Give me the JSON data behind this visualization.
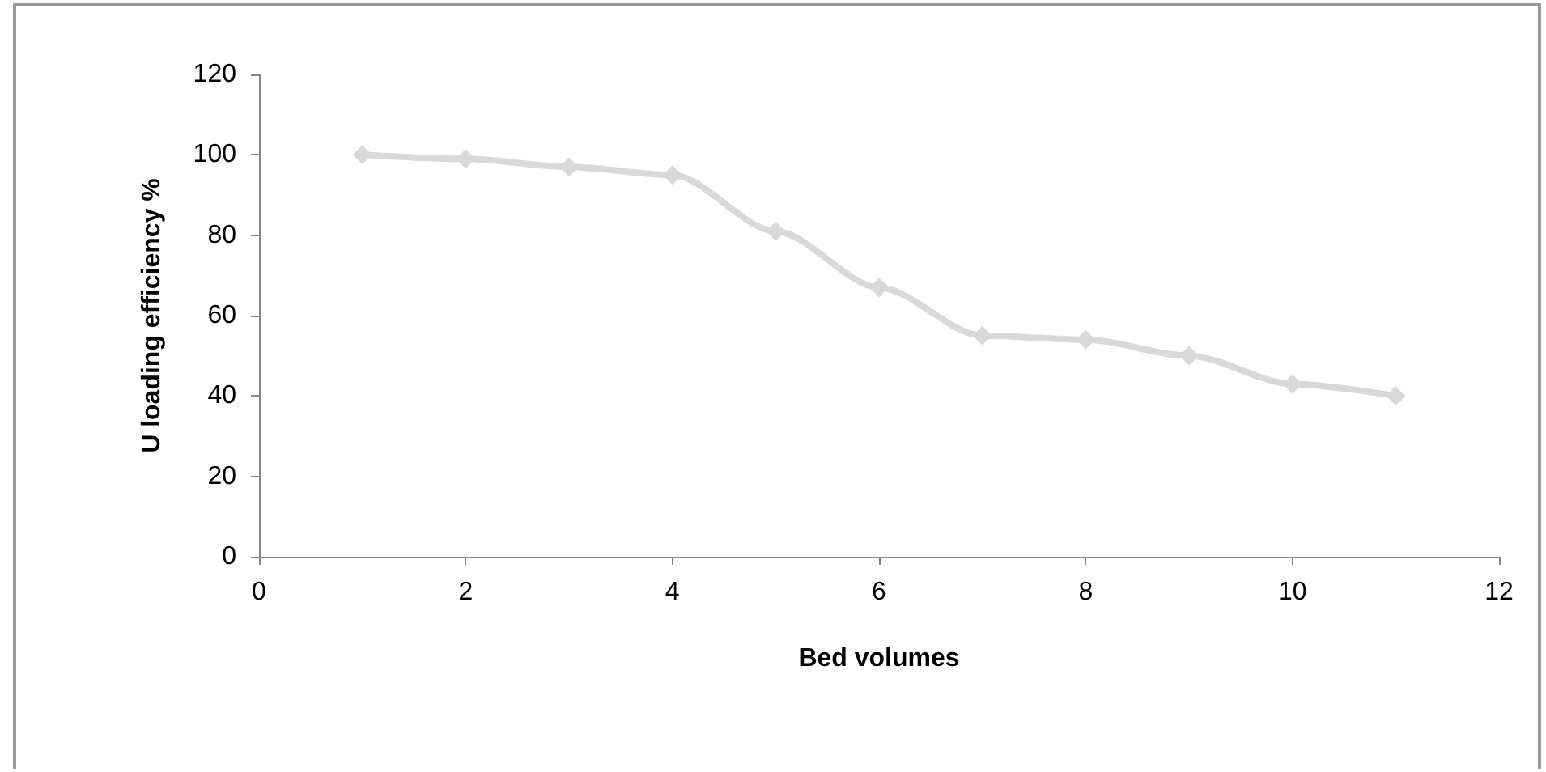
{
  "chart_data": {
    "type": "line",
    "xlabel": "Bed volumes",
    "ylabel": "U loading efficiency %",
    "x": [
      1,
      2,
      3,
      4,
      5,
      6,
      7,
      8,
      9,
      10,
      11
    ],
    "series": [
      {
        "color": "#d9d9d9",
        "values": [
          100,
          99,
          97,
          95,
          81,
          67,
          55,
          54,
          50,
          43,
          40
        ]
      }
    ],
    "xlim": [
      0,
      12
    ],
    "xticks": [
      0,
      2,
      4,
      6,
      8,
      10,
      12
    ],
    "ylim": [
      0,
      120
    ],
    "yticks": [
      0,
      20,
      40,
      60,
      80,
      100,
      120
    ],
    "grid": false,
    "marker": "diamond",
    "line_style": "solid"
  }
}
